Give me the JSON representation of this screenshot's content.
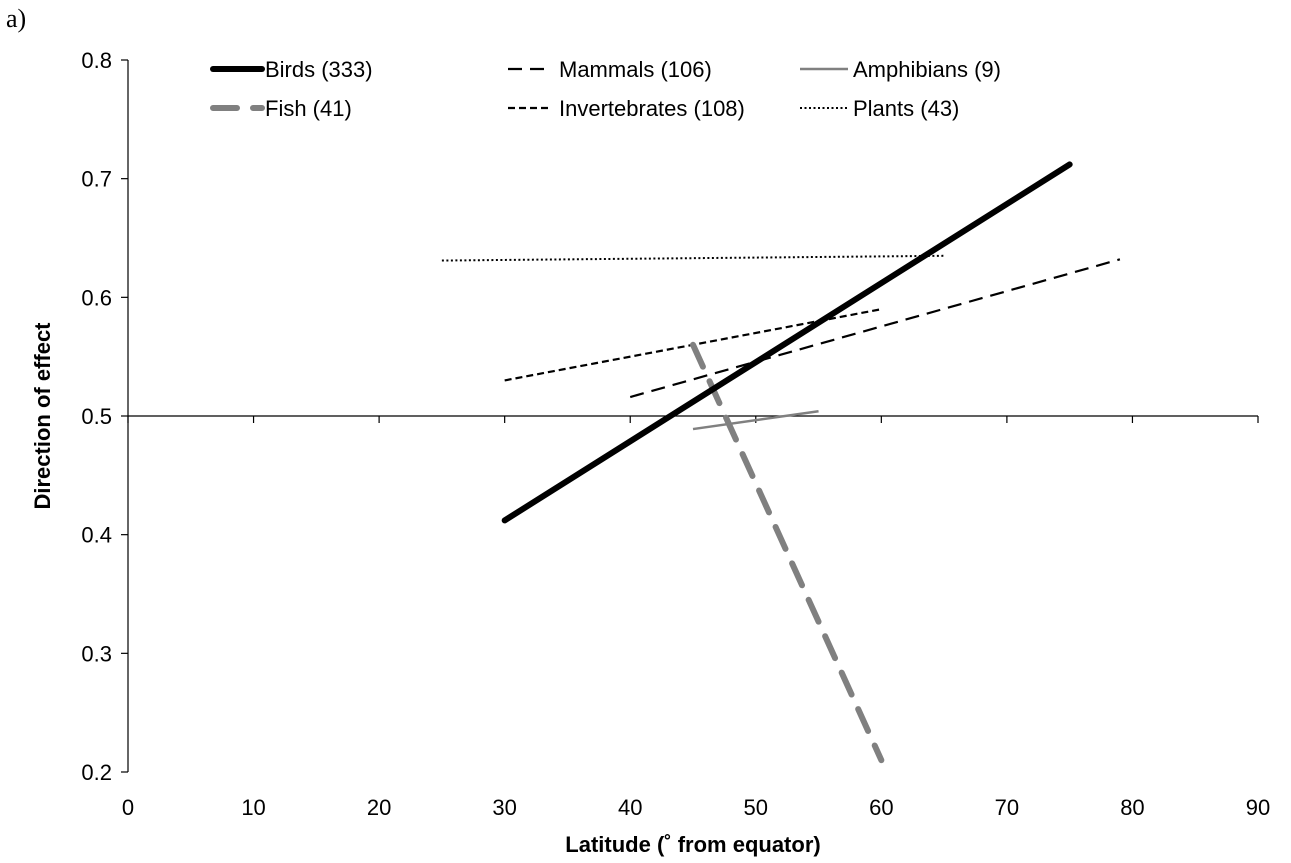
{
  "panel_label": "a)",
  "chart_data": {
    "type": "line",
    "title": "",
    "xlabel": "Latitude (˚ from equator)",
    "ylabel": "Direction of effect",
    "xlim": [
      0,
      90
    ],
    "ylim": [
      0.2,
      0.8
    ],
    "xticks": [
      0,
      10,
      20,
      30,
      40,
      50,
      60,
      70,
      80,
      90
    ],
    "yticks": [
      0.2,
      0.3,
      0.4,
      0.5,
      0.6,
      0.7,
      0.8
    ],
    "xtick_labels": [
      "0",
      "10",
      "20",
      "30",
      "40",
      "50",
      "60",
      "70",
      "80",
      "90"
    ],
    "ytick_labels": [
      "0.2",
      "0.3",
      "0.4",
      "0.5",
      "0.6",
      "0.7",
      "0.8"
    ],
    "reference_line_y": 0.5,
    "grid": false,
    "legend_position": "top",
    "series": [
      {
        "name": "Birds (333)",
        "x": [
          30,
          75
        ],
        "y": [
          0.412,
          0.712
        ],
        "color": "#000000",
        "style": "solid-thick"
      },
      {
        "name": "Mammals (106)",
        "x": [
          40,
          79
        ],
        "y": [
          0.516,
          0.632
        ],
        "color": "#000000",
        "style": "long-dash"
      },
      {
        "name": "Amphibians (9)",
        "x": [
          45,
          55
        ],
        "y": [
          0.489,
          0.504
        ],
        "color": "#808080",
        "style": "solid-thin"
      },
      {
        "name": "Fish (41)",
        "x": [
          45,
          60
        ],
        "y": [
          0.56,
          0.21
        ],
        "color": "#808080",
        "style": "dash-thick"
      },
      {
        "name": "Invertebrates (108)",
        "x": [
          30,
          60
        ],
        "y": [
          0.53,
          0.59
        ],
        "color": "#000000",
        "style": "short-dash"
      },
      {
        "name": "Plants (43)",
        "x": [
          25,
          65
        ],
        "y": [
          0.631,
          0.635
        ],
        "color": "#000000",
        "style": "dotted"
      }
    ]
  }
}
